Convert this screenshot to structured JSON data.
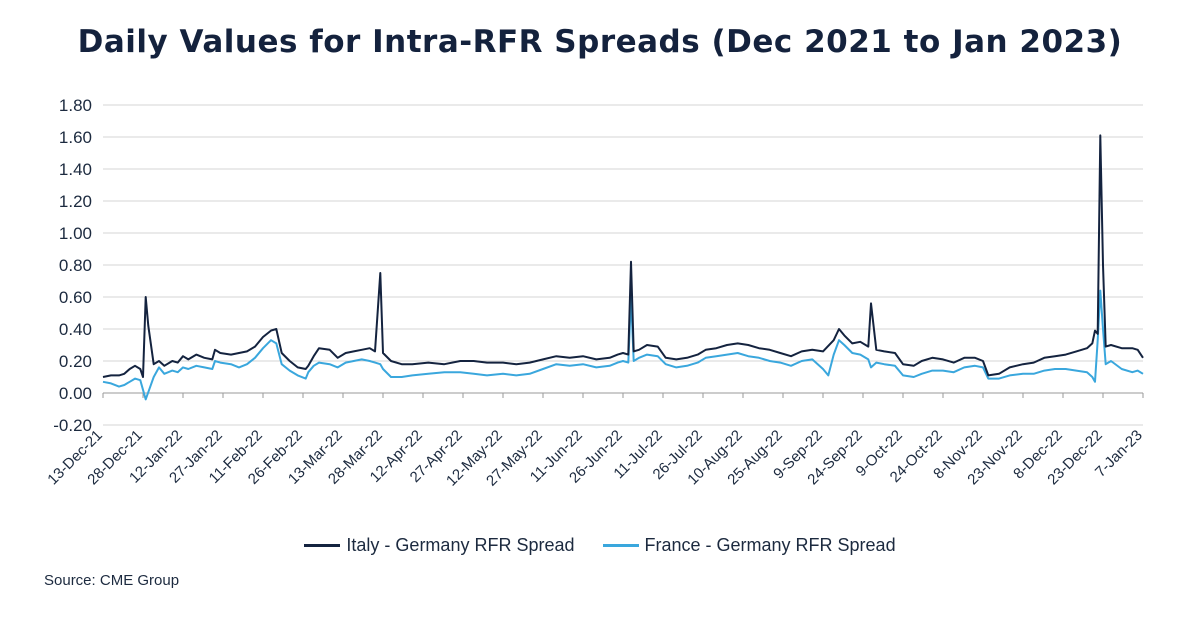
{
  "title": "Daily Values for Intra-RFR Spreads (Dec 2021 to Jan 2023)",
  "source": "Source: CME Group",
  "colors": {
    "italy": "#14233f",
    "france": "#3aa7dd",
    "grid": "#d4d4d4",
    "axis": "#9a9a9a",
    "text": "#1c2a3f"
  },
  "chart_data": {
    "type": "line",
    "title": "Daily Values for Intra-RFR Spreads (Dec 2021 to Jan 2023)",
    "xlabel": "",
    "ylabel": "",
    "ylim": [
      -0.2,
      1.8
    ],
    "yticks": [
      "1.80",
      "1.60",
      "1.40",
      "1.20",
      "1.00",
      "0.80",
      "0.60",
      "0.40",
      "0.20",
      "0.00",
      "-0.20"
    ],
    "grid": "horizontal",
    "legend_position": "bottom",
    "x_start": "13-Dec-21",
    "x_end": "7-Jan-23",
    "x_tick_labels": [
      "13-Dec-21",
      "28-Dec-21",
      "12-Jan-22",
      "27-Jan-22",
      "11-Feb-22",
      "26-Feb-22",
      "13-Mar-22",
      "28-Mar-22",
      "12-Apr-22",
      "27-Apr-22",
      "12-May-22",
      "27-May-22",
      "11-Jun-22",
      "26-Jun-22",
      "11-Jul-22",
      "26-Jul-22",
      "10-Aug-22",
      "25-Aug-22",
      "9-Sep-22",
      "24-Sep-22",
      "9-Oct-22",
      "24-Oct-22",
      "8-Nov-22",
      "23-Nov-22",
      "8-Dec-22",
      "23-Dec-22",
      "7-Jan-23"
    ],
    "series": [
      {
        "name": "Italy - Germany RFR Spread",
        "color": "#14233f",
        "points": [
          [
            "13-Dec-21",
            0.1
          ],
          [
            "16-Dec-21",
            0.11
          ],
          [
            "19-Dec-21",
            0.11
          ],
          [
            "21-Dec-21",
            0.12
          ],
          [
            "23-Dec-21",
            0.15
          ],
          [
            "25-Dec-21",
            0.17
          ],
          [
            "27-Dec-21",
            0.15
          ],
          [
            "28-Dec-21",
            0.1
          ],
          [
            "29-Dec-21",
            0.6
          ],
          [
            "30-Dec-21",
            0.42
          ],
          [
            "1-Jan-22",
            0.18
          ],
          [
            "3-Jan-22",
            0.2
          ],
          [
            "5-Jan-22",
            0.17
          ],
          [
            "8-Jan-22",
            0.2
          ],
          [
            "10-Jan-22",
            0.19
          ],
          [
            "12-Jan-22",
            0.23
          ],
          [
            "14-Jan-22",
            0.21
          ],
          [
            "17-Jan-22",
            0.24
          ],
          [
            "20-Jan-22",
            0.22
          ],
          [
            "23-Jan-22",
            0.21
          ],
          [
            "24-Jan-22",
            0.27
          ],
          [
            "26-Jan-22",
            0.25
          ],
          [
            "30-Jan-22",
            0.24
          ],
          [
            "2-Feb-22",
            0.25
          ],
          [
            "5-Feb-22",
            0.26
          ],
          [
            "8-Feb-22",
            0.29
          ],
          [
            "11-Feb-22",
            0.35
          ],
          [
            "14-Feb-22",
            0.39
          ],
          [
            "16-Feb-22",
            0.4
          ],
          [
            "18-Feb-22",
            0.25
          ],
          [
            "21-Feb-22",
            0.2
          ],
          [
            "24-Feb-22",
            0.16
          ],
          [
            "27-Feb-22",
            0.15
          ],
          [
            "28-Feb-22",
            0.17
          ],
          [
            "2-Mar-22",
            0.23
          ],
          [
            "4-Mar-22",
            0.28
          ],
          [
            "8-Mar-22",
            0.27
          ],
          [
            "11-Mar-22",
            0.22
          ],
          [
            "14-Mar-22",
            0.25
          ],
          [
            "17-Mar-22",
            0.26
          ],
          [
            "20-Mar-22",
            0.27
          ],
          [
            "23-Mar-22",
            0.28
          ],
          [
            "25-Mar-22",
            0.26
          ],
          [
            "27-Mar-22",
            0.75
          ],
          [
            "28-Mar-22",
            0.25
          ],
          [
            "31-Mar-22",
            0.2
          ],
          [
            "4-Apr-22",
            0.18
          ],
          [
            "8-Apr-22",
            0.18
          ],
          [
            "14-Apr-22",
            0.19
          ],
          [
            "20-Apr-22",
            0.18
          ],
          [
            "26-Apr-22",
            0.2
          ],
          [
            "1-May-22",
            0.2
          ],
          [
            "6-May-22",
            0.19
          ],
          [
            "12-May-22",
            0.19
          ],
          [
            "17-May-22",
            0.18
          ],
          [
            "22-May-22",
            0.19
          ],
          [
            "27-May-22",
            0.21
          ],
          [
            "1-Jun-22",
            0.23
          ],
          [
            "6-Jun-22",
            0.22
          ],
          [
            "11-Jun-22",
            0.23
          ],
          [
            "16-Jun-22",
            0.21
          ],
          [
            "21-Jun-22",
            0.22
          ],
          [
            "24-Jun-22",
            0.24
          ],
          [
            "26-Jun-22",
            0.25
          ],
          [
            "28-Jun-22",
            0.24
          ],
          [
            "29-Jun-22",
            0.82
          ],
          [
            "30-Jun-22",
            0.26
          ],
          [
            "2-Jul-22",
            0.27
          ],
          [
            "5-Jul-22",
            0.3
          ],
          [
            "9-Jul-22",
            0.29
          ],
          [
            "12-Jul-22",
            0.22
          ],
          [
            "16-Jul-22",
            0.21
          ],
          [
            "20-Jul-22",
            0.22
          ],
          [
            "24-Jul-22",
            0.24
          ],
          [
            "27-Jul-22",
            0.27
          ],
          [
            "31-Jul-22",
            0.28
          ],
          [
            "4-Aug-22",
            0.3
          ],
          [
            "8-Aug-22",
            0.31
          ],
          [
            "12-Aug-22",
            0.3
          ],
          [
            "16-Aug-22",
            0.28
          ],
          [
            "20-Aug-22",
            0.27
          ],
          [
            "24-Aug-22",
            0.25
          ],
          [
            "28-Aug-22",
            0.23
          ],
          [
            "1-Sep-22",
            0.26
          ],
          [
            "5-Sep-22",
            0.27
          ],
          [
            "9-Sep-22",
            0.26
          ],
          [
            "13-Sep-22",
            0.33
          ],
          [
            "15-Sep-22",
            0.4
          ],
          [
            "17-Sep-22",
            0.36
          ],
          [
            "20-Sep-22",
            0.31
          ],
          [
            "23-Sep-22",
            0.32
          ],
          [
            "26-Sep-22",
            0.29
          ],
          [
            "27-Sep-22",
            0.56
          ],
          [
            "29-Sep-22",
            0.27
          ],
          [
            "2-Oct-22",
            0.26
          ],
          [
            "6-Oct-22",
            0.25
          ],
          [
            "9-Oct-22",
            0.18
          ],
          [
            "13-Oct-22",
            0.17
          ],
          [
            "16-Oct-22",
            0.2
          ],
          [
            "20-Oct-22",
            0.22
          ],
          [
            "24-Oct-22",
            0.21
          ],
          [
            "28-Oct-22",
            0.19
          ],
          [
            "1-Nov-22",
            0.22
          ],
          [
            "5-Nov-22",
            0.22
          ],
          [
            "8-Nov-22",
            0.2
          ],
          [
            "10-Nov-22",
            0.11
          ],
          [
            "14-Nov-22",
            0.12
          ],
          [
            "18-Nov-22",
            0.16
          ],
          [
            "23-Nov-22",
            0.18
          ],
          [
            "27-Nov-22",
            0.19
          ],
          [
            "1-Dec-22",
            0.22
          ],
          [
            "5-Dec-22",
            0.23
          ],
          [
            "9-Dec-22",
            0.24
          ],
          [
            "13-Dec-22",
            0.26
          ],
          [
            "17-Dec-22",
            0.28
          ],
          [
            "19-Dec-22",
            0.31
          ],
          [
            "20-Dec-22",
            0.39
          ],
          [
            "21-Dec-22",
            0.37
          ],
          [
            "22-Dec-22",
            1.61
          ],
          [
            "23-Dec-22",
            0.8
          ],
          [
            "24-Dec-22",
            0.29
          ],
          [
            "26-Dec-22",
            0.3
          ],
          [
            "30-Dec-22",
            0.28
          ],
          [
            "3-Jan-23",
            0.28
          ],
          [
            "5-Jan-23",
            0.27
          ],
          [
            "7-Jan-23",
            0.22
          ]
        ]
      },
      {
        "name": "France - Germany RFR Spread",
        "color": "#3aa7dd",
        "points": [
          [
            "13-Dec-21",
            0.07
          ],
          [
            "16-Dec-21",
            0.06
          ],
          [
            "19-Dec-21",
            0.04
          ],
          [
            "21-Dec-21",
            0.05
          ],
          [
            "23-Dec-21",
            0.07
          ],
          [
            "25-Dec-21",
            0.09
          ],
          [
            "27-Dec-21",
            0.08
          ],
          [
            "28-Dec-21",
            0.02
          ],
          [
            "29-Dec-21",
            -0.04
          ],
          [
            "1-Jan-22",
            0.1
          ],
          [
            "3-Jan-22",
            0.16
          ],
          [
            "5-Jan-22",
            0.12
          ],
          [
            "8-Jan-22",
            0.14
          ],
          [
            "10-Jan-22",
            0.13
          ],
          [
            "12-Jan-22",
            0.16
          ],
          [
            "14-Jan-22",
            0.15
          ],
          [
            "17-Jan-22",
            0.17
          ],
          [
            "20-Jan-22",
            0.16
          ],
          [
            "23-Jan-22",
            0.15
          ],
          [
            "24-Jan-22",
            0.2
          ],
          [
            "26-Jan-22",
            0.19
          ],
          [
            "30-Jan-22",
            0.18
          ],
          [
            "2-Feb-22",
            0.16
          ],
          [
            "5-Feb-22",
            0.18
          ],
          [
            "8-Feb-22",
            0.22
          ],
          [
            "11-Feb-22",
            0.28
          ],
          [
            "14-Feb-22",
            0.33
          ],
          [
            "16-Feb-22",
            0.31
          ],
          [
            "18-Feb-22",
            0.18
          ],
          [
            "21-Feb-22",
            0.14
          ],
          [
            "24-Feb-22",
            0.11
          ],
          [
            "27-Feb-22",
            0.09
          ],
          [
            "28-Feb-22",
            0.13
          ],
          [
            "2-Mar-22",
            0.17
          ],
          [
            "4-Mar-22",
            0.19
          ],
          [
            "8-Mar-22",
            0.18
          ],
          [
            "11-Mar-22",
            0.16
          ],
          [
            "14-Mar-22",
            0.19
          ],
          [
            "17-Mar-22",
            0.2
          ],
          [
            "20-Mar-22",
            0.21
          ],
          [
            "23-Mar-22",
            0.2
          ],
          [
            "25-Mar-22",
            0.19
          ],
          [
            "27-Mar-22",
            0.18
          ],
          [
            "28-Mar-22",
            0.15
          ],
          [
            "31-Mar-22",
            0.1
          ],
          [
            "4-Apr-22",
            0.1
          ],
          [
            "8-Apr-22",
            0.11
          ],
          [
            "14-Apr-22",
            0.12
          ],
          [
            "20-Apr-22",
            0.13
          ],
          [
            "26-Apr-22",
            0.13
          ],
          [
            "1-May-22",
            0.12
          ],
          [
            "6-May-22",
            0.11
          ],
          [
            "12-May-22",
            0.12
          ],
          [
            "17-May-22",
            0.11
          ],
          [
            "22-May-22",
            0.12
          ],
          [
            "27-May-22",
            0.15
          ],
          [
            "1-Jun-22",
            0.18
          ],
          [
            "6-Jun-22",
            0.17
          ],
          [
            "11-Jun-22",
            0.18
          ],
          [
            "16-Jun-22",
            0.16
          ],
          [
            "21-Jun-22",
            0.17
          ],
          [
            "24-Jun-22",
            0.19
          ],
          [
            "26-Jun-22",
            0.2
          ],
          [
            "28-Jun-22",
            0.19
          ],
          [
            "29-Jun-22",
            0.6
          ],
          [
            "30-Jun-22",
            0.2
          ],
          [
            "2-Jul-22",
            0.22
          ],
          [
            "5-Jul-22",
            0.24
          ],
          [
            "9-Jul-22",
            0.23
          ],
          [
            "12-Jul-22",
            0.18
          ],
          [
            "16-Jul-22",
            0.16
          ],
          [
            "20-Jul-22",
            0.17
          ],
          [
            "24-Jul-22",
            0.19
          ],
          [
            "27-Jul-22",
            0.22
          ],
          [
            "31-Jul-22",
            0.23
          ],
          [
            "4-Aug-22",
            0.24
          ],
          [
            "8-Aug-22",
            0.25
          ],
          [
            "12-Aug-22",
            0.23
          ],
          [
            "16-Aug-22",
            0.22
          ],
          [
            "20-Aug-22",
            0.2
          ],
          [
            "24-Aug-22",
            0.19
          ],
          [
            "28-Aug-22",
            0.17
          ],
          [
            "1-Sep-22",
            0.2
          ],
          [
            "5-Sep-22",
            0.21
          ],
          [
            "9-Sep-22",
            0.15
          ],
          [
            "11-Sep-22",
            0.11
          ],
          [
            "13-Sep-22",
            0.24
          ],
          [
            "15-Sep-22",
            0.33
          ],
          [
            "17-Sep-22",
            0.3
          ],
          [
            "20-Sep-22",
            0.25
          ],
          [
            "23-Sep-22",
            0.24
          ],
          [
            "26-Sep-22",
            0.21
          ],
          [
            "27-Sep-22",
            0.16
          ],
          [
            "29-Sep-22",
            0.19
          ],
          [
            "2-Oct-22",
            0.18
          ],
          [
            "6-Oct-22",
            0.17
          ],
          [
            "9-Oct-22",
            0.11
          ],
          [
            "13-Oct-22",
            0.1
          ],
          [
            "16-Oct-22",
            0.12
          ],
          [
            "20-Oct-22",
            0.14
          ],
          [
            "24-Oct-22",
            0.14
          ],
          [
            "28-Oct-22",
            0.13
          ],
          [
            "1-Nov-22",
            0.16
          ],
          [
            "5-Nov-22",
            0.17
          ],
          [
            "8-Nov-22",
            0.16
          ],
          [
            "10-Nov-22",
            0.09
          ],
          [
            "14-Nov-22",
            0.09
          ],
          [
            "18-Nov-22",
            0.11
          ],
          [
            "23-Nov-22",
            0.12
          ],
          [
            "27-Nov-22",
            0.12
          ],
          [
            "1-Dec-22",
            0.14
          ],
          [
            "5-Dec-22",
            0.15
          ],
          [
            "9-Dec-22",
            0.15
          ],
          [
            "13-Dec-22",
            0.14
          ],
          [
            "17-Dec-22",
            0.13
          ],
          [
            "19-Dec-22",
            0.1
          ],
          [
            "20-Dec-22",
            0.07
          ],
          [
            "21-Dec-22",
            0.33
          ],
          [
            "22-Dec-22",
            0.64
          ],
          [
            "23-Dec-22",
            0.4
          ],
          [
            "24-Dec-22",
            0.18
          ],
          [
            "26-Dec-22",
            0.2
          ],
          [
            "30-Dec-22",
            0.15
          ],
          [
            "3-Jan-23",
            0.13
          ],
          [
            "5-Jan-23",
            0.14
          ],
          [
            "7-Jan-23",
            0.12
          ]
        ]
      }
    ]
  }
}
